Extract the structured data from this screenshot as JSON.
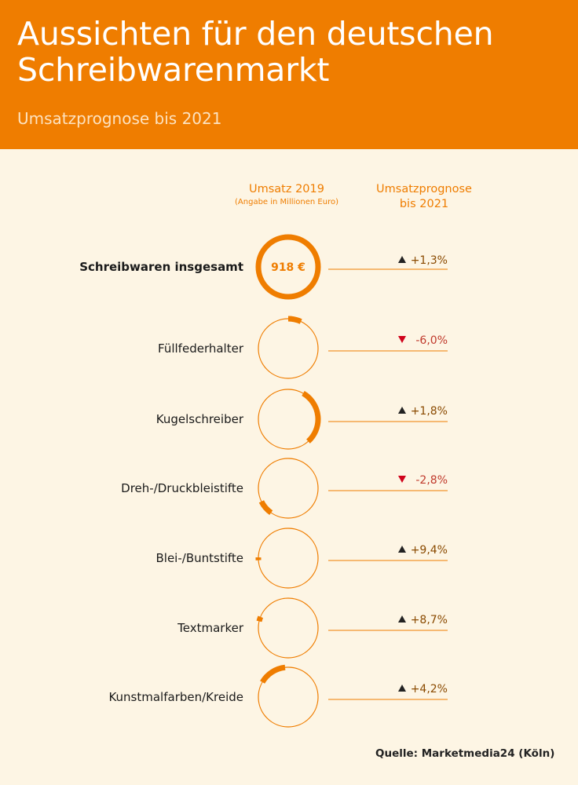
{
  "header": {
    "title_line1": "Aussichten für den deutschen",
    "title_line2": "Schreibwarenmarkt",
    "subtitle": "Umsatzprognose bis 2021"
  },
  "columns": {
    "col1_title": "Umsatz 2019",
    "col1_note": "(Angabe in Millionen Euro)",
    "col2_title_line1": "Umsatzprognose",
    "col2_title_line2": "bis 2021"
  },
  "source": "Quelle: Marketmedia24 (Köln)",
  "colors": {
    "header_bg": "#ef7d00",
    "background": "#fdf5e4",
    "accent": "#ef7d00",
    "up_arrow": "#222222",
    "down_arrow": "#d0021b",
    "down_text": "#c0392b"
  },
  "chart_data": {
    "type": "donut-table",
    "total": {
      "label": "Schreibwaren insgesamt",
      "value_label": "918 €",
      "forecast": "+1,3%",
      "trend": "up"
    },
    "rows": [
      {
        "label": "Füllfederhalter",
        "share": 0.07,
        "start_deg": 0,
        "forecast": "-6,0%",
        "trend": "down"
      },
      {
        "label": "Kugelschreiber",
        "share": 0.3,
        "start_deg": 30,
        "forecast": "+1,8%",
        "trend": "up"
      },
      {
        "label": "Dreh-/Druckbleistifte",
        "share": 0.08,
        "start_deg": 215,
        "forecast": "-2,8%",
        "trend": "down"
      },
      {
        "label": "Blei-/Buntstifte",
        "share": 0.015,
        "start_deg": 266,
        "forecast": "+9,4%",
        "trend": "up"
      },
      {
        "label": "Textmarker",
        "share": 0.025,
        "start_deg": 283,
        "forecast": "+8,7%",
        "trend": "up"
      },
      {
        "label": "Kunstmalfarben/Kreide",
        "share": 0.15,
        "start_deg": 300,
        "forecast": "+4,2%",
        "trend": "up"
      }
    ]
  }
}
